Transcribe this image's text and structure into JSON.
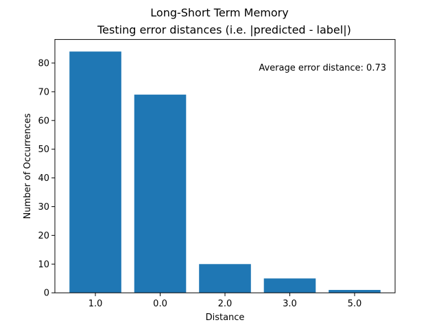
{
  "chart_data": {
    "type": "bar",
    "suptitle": "Long-Short Term Memory",
    "title": "Testing error distances (i.e. |predicted - label|)",
    "xlabel": "Distance",
    "ylabel": "Number of Occurrences",
    "categories": [
      "1.0",
      "0.0",
      "2.0",
      "3.0",
      "5.0"
    ],
    "values": [
      84,
      69,
      10,
      5,
      1
    ],
    "ylim": [
      0,
      88.2
    ],
    "yticks": [
      0,
      10,
      20,
      30,
      40,
      50,
      60,
      70,
      80
    ],
    "annotation": "Average error distance: 0.73",
    "bar_color": "#1f77b4",
    "grid": false,
    "legend": "none"
  }
}
